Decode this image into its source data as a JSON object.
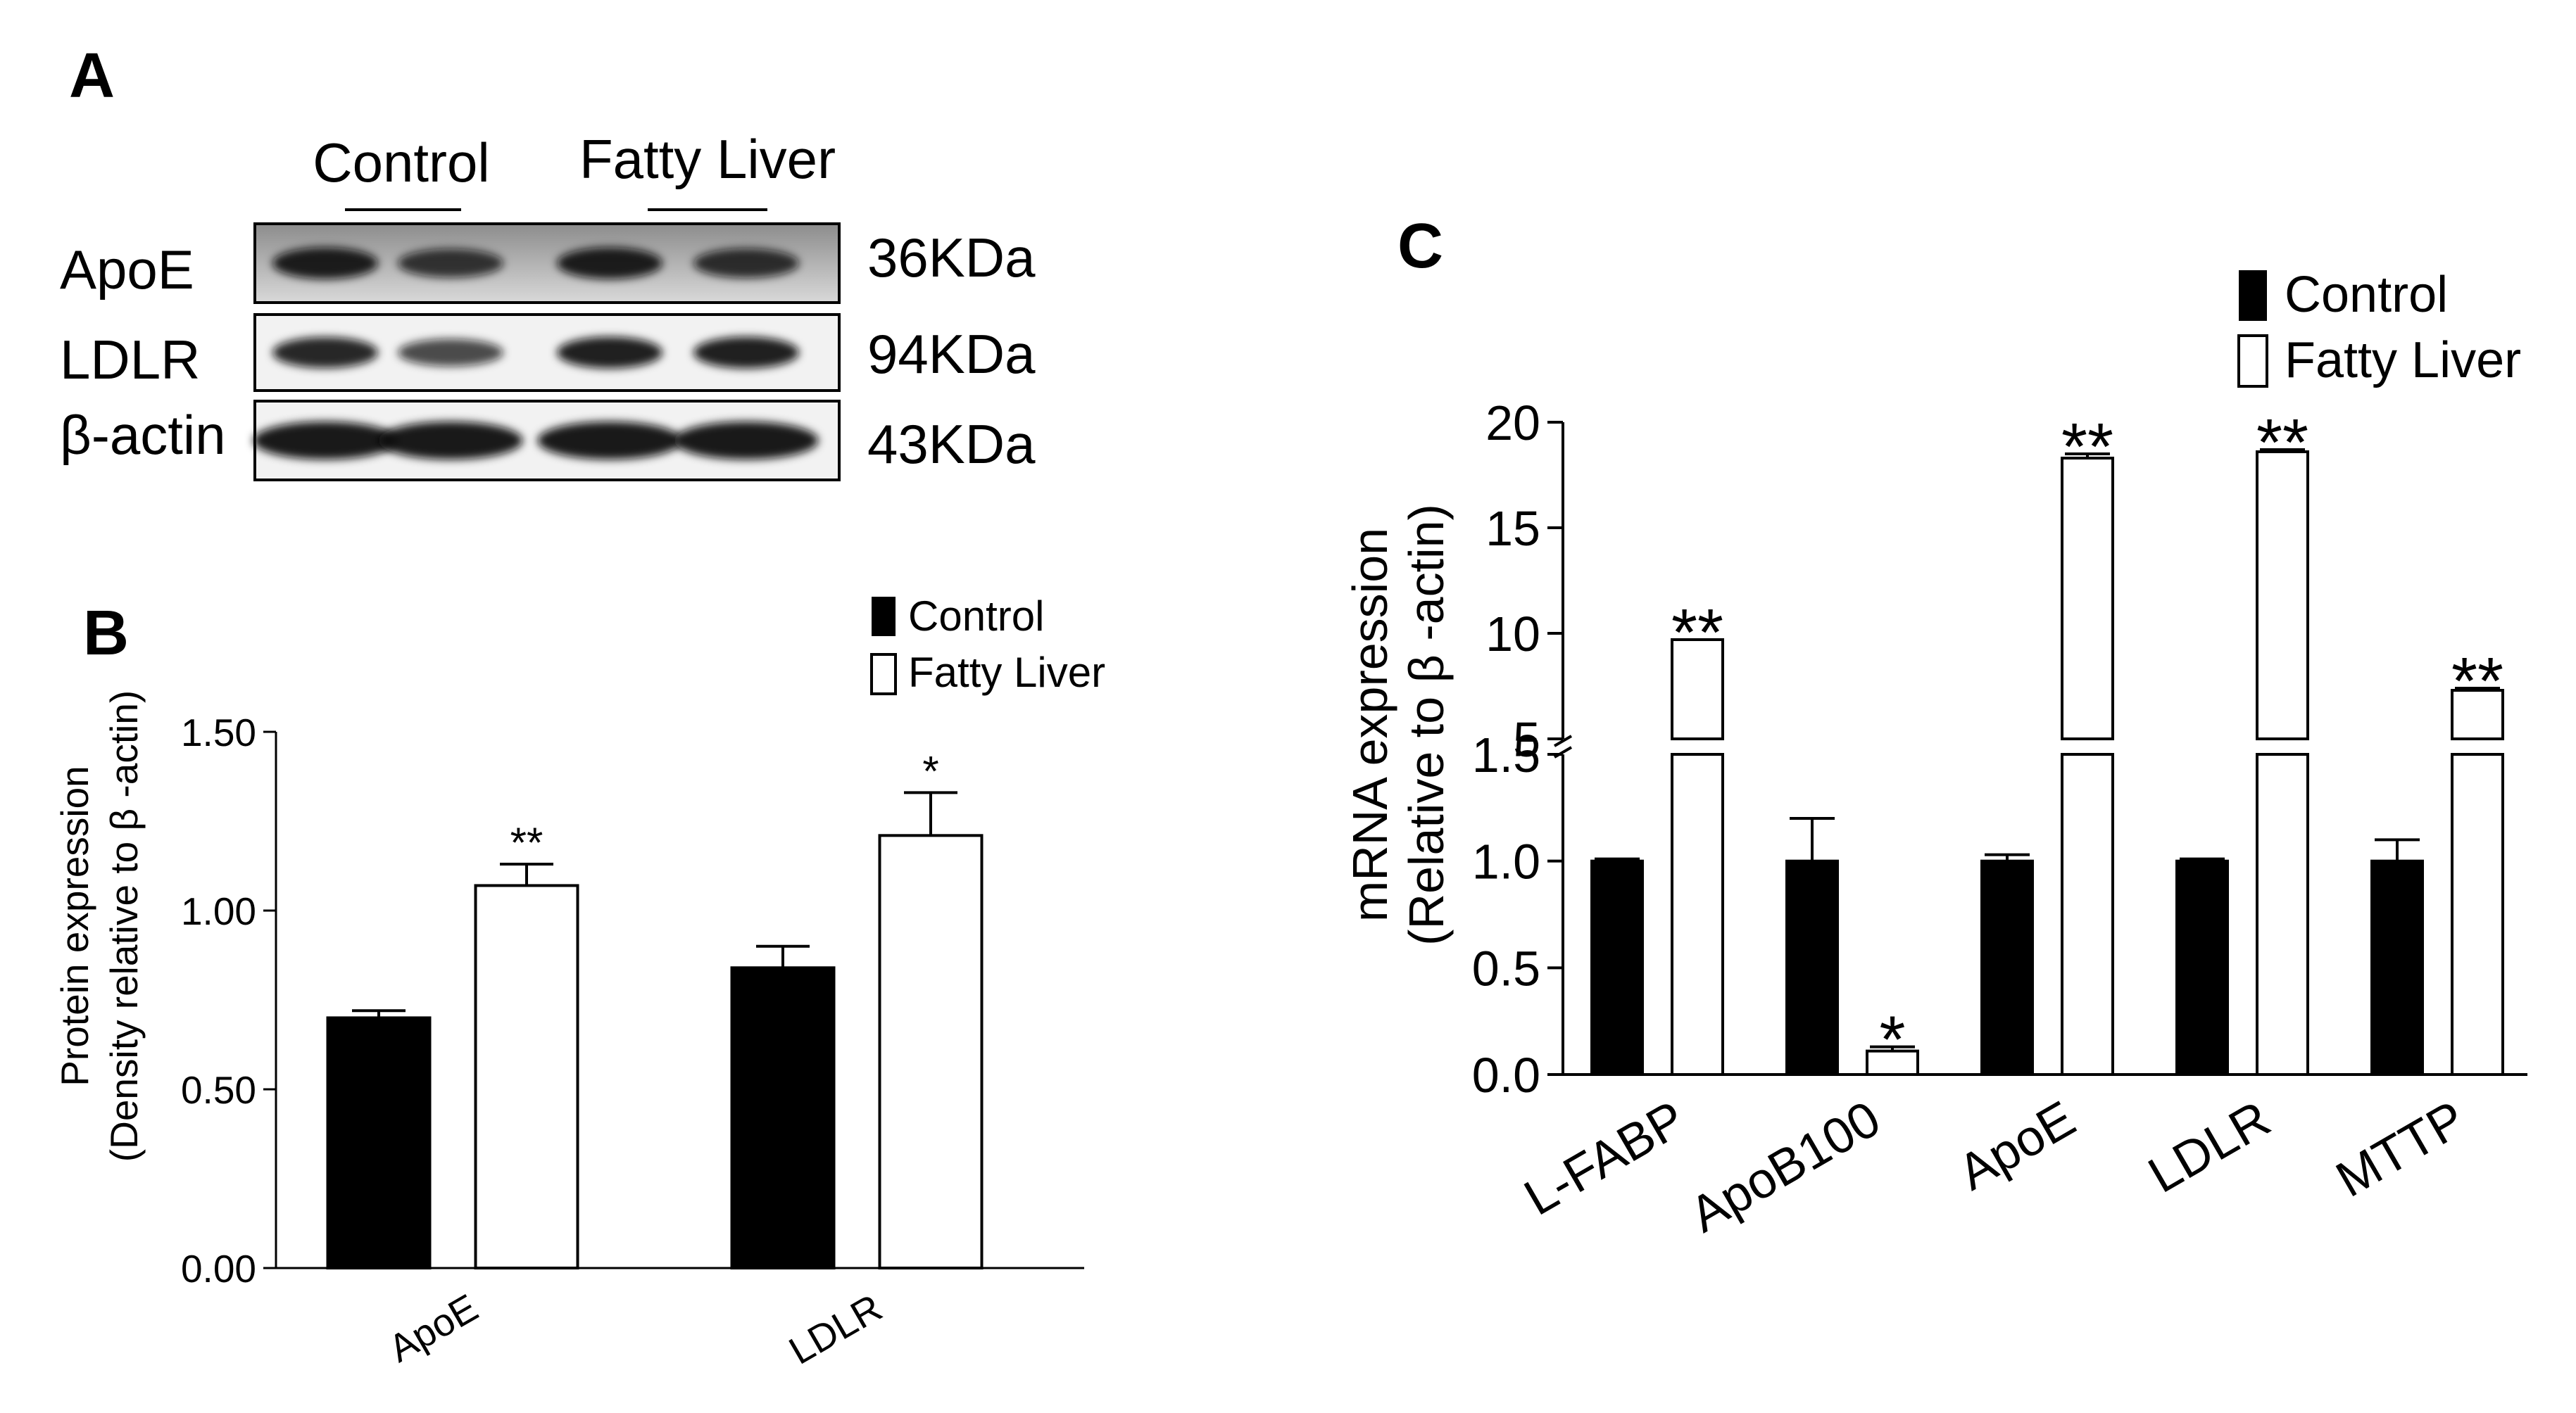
{
  "panel_a": {
    "letter": "A",
    "groups": [
      "Control",
      "Fatty Liver"
    ],
    "rows": [
      {
        "label": "ApoE",
        "size": "36KDa"
      },
      {
        "label": "LDLR",
        "size": "94KDa"
      },
      {
        "label": "β-actin",
        "size": "43KDa"
      }
    ],
    "band_intensity": [
      [
        0.95,
        0.75,
        0.95,
        0.8
      ],
      [
        0.9,
        0.65,
        0.95,
        0.95
      ],
      [
        1.0,
        1.0,
        1.0,
        1.0
      ]
    ],
    "colors": {
      "blot_bg_top": "#8c8c8c",
      "blot_bg": "#d9d9d9",
      "band": "#111111"
    }
  },
  "chart_data": [
    {
      "panel": "B",
      "type": "bar",
      "ylabel_line1": "Protein expression",
      "ylabel_line2": "(Density relative to β -actin)",
      "categories": [
        "ApoE",
        "LDLR"
      ],
      "series": [
        {
          "name": "Control",
          "values": [
            0.7,
            0.84
          ],
          "errors": [
            0.02,
            0.06
          ],
          "fill": "#000000"
        },
        {
          "name": "Fatty Liver",
          "values": [
            1.07,
            1.21
          ],
          "errors": [
            0.06,
            0.12
          ],
          "fill": "#ffffff"
        }
      ],
      "significance": [
        "**",
        "*"
      ],
      "ylim": [
        0,
        1.5
      ],
      "yticks": [
        "0.00",
        "0.50",
        "1.00",
        "1.50"
      ],
      "legend_placement": "top-right"
    },
    {
      "panel": "C",
      "type": "bar",
      "ylabel_line1": "mRNA expression",
      "ylabel_line2": "(Relative to β -actin)",
      "categories": [
        "L-FABP",
        "ApoB100",
        "ApoE",
        "LDLR",
        "MTTP"
      ],
      "series": [
        {
          "name": "Control",
          "values": [
            1.0,
            1.0,
            1.0,
            1.0,
            1.0
          ],
          "errors": [
            0.01,
            0.2,
            0.03,
            0.01,
            0.1
          ],
          "fill": "#000000"
        },
        {
          "name": "Fatty Liver",
          "values": [
            9.7,
            0.11,
            18.3,
            18.6,
            7.3
          ],
          "errors": [
            0,
            0.02,
            0.2,
            0.1,
            0.1
          ],
          "fill": "#ffffff"
        }
      ],
      "significance": [
        "**",
        "*",
        "**",
        "**",
        "**"
      ],
      "axis_break": true,
      "ylim_lower": [
        0,
        1.5
      ],
      "ylim_upper": [
        5,
        20
      ],
      "yticks_lower": [
        "0.0",
        "0.5",
        "1.0",
        "1.5"
      ],
      "yticks_upper": [
        "5",
        "10",
        "15",
        "20"
      ],
      "legend_placement": "top-right"
    }
  ]
}
